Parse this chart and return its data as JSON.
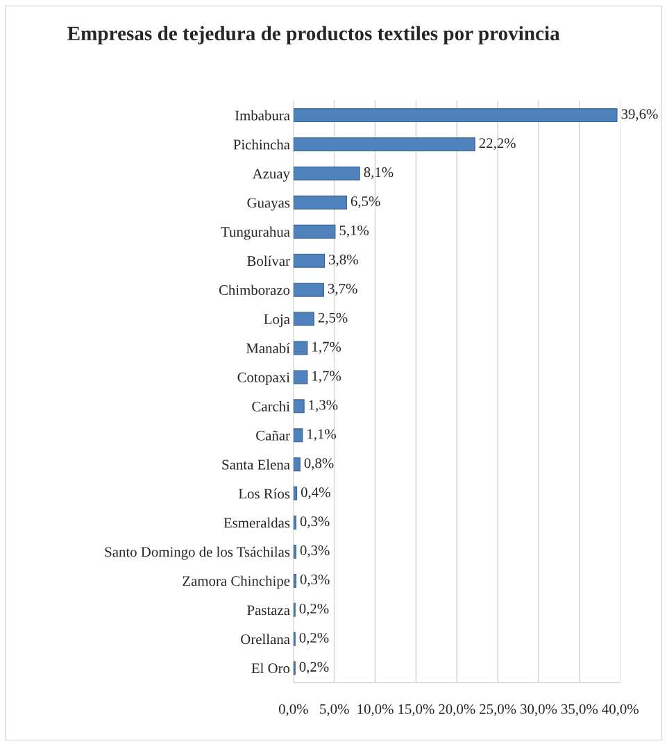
{
  "chart_data": {
    "type": "bar",
    "orientation": "horizontal",
    "title": "Empresas de tejedura de productos textiles por provincia",
    "categories": [
      "Imbabura",
      "Pichincha",
      "Azuay",
      "Guayas",
      "Tungurahua",
      "Bolívar",
      "Chimborazo",
      "Loja",
      "Manabí",
      "Cotopaxi",
      "Carchi",
      "Cañar",
      "Santa Elena",
      "Los Ríos",
      "Esmeraldas",
      "Santo Domingo de los Tsáchilas",
      "Zamora Chinchipe",
      "Pastaza",
      "Orellana",
      "El Oro"
    ],
    "values": [
      39.6,
      22.2,
      8.1,
      6.5,
      5.1,
      3.8,
      3.7,
      2.5,
      1.7,
      1.7,
      1.3,
      1.1,
      0.8,
      0.4,
      0.3,
      0.3,
      0.3,
      0.2,
      0.2,
      0.2
    ],
    "value_labels": [
      "39,6%",
      "22,2%",
      "8,1%",
      "6,5%",
      "5,1%",
      "3,8%",
      "3,7%",
      "2,5%",
      "1,7%",
      "1,7%",
      "1,3%",
      "1,1%",
      "0,8%",
      "0,4%",
      "0,3%",
      "0,3%",
      "0,3%",
      "0,2%",
      "0,2%",
      "0,2%"
    ],
    "color": "#4f81bd",
    "xlim": [
      0,
      40
    ],
    "xticks": [
      {
        "value": 0,
        "label": "0,0%"
      },
      {
        "value": 5,
        "label": "5,0%"
      },
      {
        "value": 10,
        "label": "10,0%"
      },
      {
        "value": 15,
        "label": "15,0%"
      },
      {
        "value": 20,
        "label": "20,0%"
      },
      {
        "value": 25,
        "label": "25,0%"
      },
      {
        "value": 30,
        "label": "30,0%"
      },
      {
        "value": 35,
        "label": "35,0%"
      },
      {
        "value": 40,
        "label": "40,0%"
      }
    ],
    "grid": "x",
    "legend": false
  }
}
